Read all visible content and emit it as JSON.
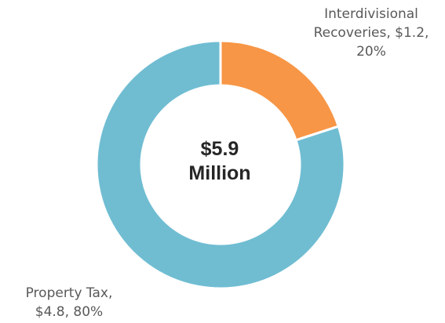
{
  "chart_data": {
    "type": "pie",
    "style": "donut",
    "center_label": [
      "$5.9",
      "Million"
    ],
    "slices": [
      {
        "name": "Interdivisional Recoveries",
        "value": 1.2,
        "percent": 20,
        "color": "#F79646",
        "label_lines": [
          "Interdivisional",
          "Recoveries, $1.2,",
          "20%"
        ]
      },
      {
        "name": "Property Tax",
        "value": 4.8,
        "percent": 80,
        "color": "#70BDD2",
        "label_lines": [
          "Property Tax,",
          "$4.8, 80%"
        ]
      }
    ]
  }
}
